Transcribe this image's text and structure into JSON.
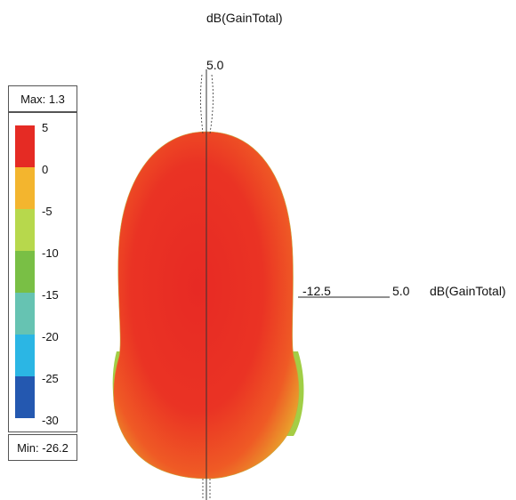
{
  "title": "dB(GainTotal)",
  "legend": {
    "max_label": "Max: 1.3",
    "min_label": "Min: -26.2",
    "bands": [
      {
        "tick": "5",
        "color": "#e52b24"
      },
      {
        "tick": "0",
        "color": "#f3b52e"
      },
      {
        "tick": "-5",
        "color": "#b7d84c"
      },
      {
        "tick": "-10",
        "color": "#79bf45"
      },
      {
        "tick": "-15",
        "color": "#66c3b2"
      },
      {
        "tick": "-20",
        "color": "#2bb6e4"
      },
      {
        "tick": "-25",
        "color": "#2458b0"
      }
    ],
    "bottom_tick": "-30"
  },
  "axes": {
    "top_value": "5.0",
    "scale_left": "-12.5",
    "scale_right": "5.0",
    "scale_unit": "dB(GainTotal)"
  }
}
